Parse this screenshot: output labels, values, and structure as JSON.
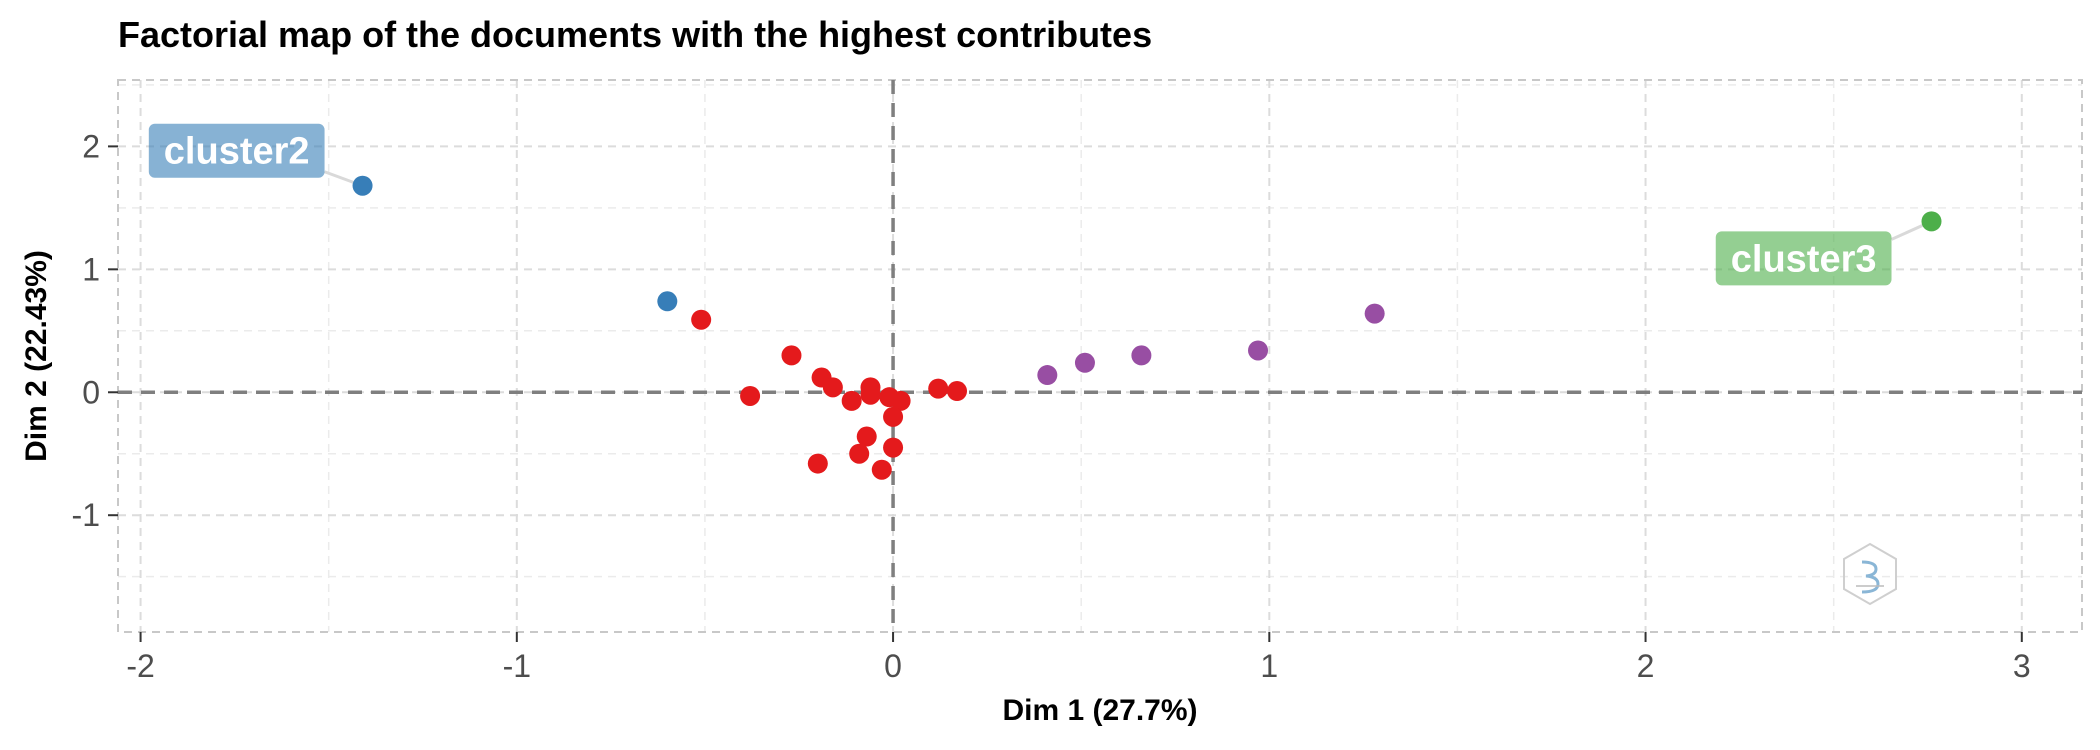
{
  "chart_data": {
    "type": "scatter",
    "title": "Factorial map of the documents with the highest contributes",
    "xlabel": "Dim 1 (27.7%)",
    "ylabel": "Dim 2 (22.43%)",
    "xlim": [
      -2.06,
      3.16
    ],
    "ylim": [
      -1.95,
      2.54
    ],
    "x_ticks": [
      -2,
      -1,
      0,
      1,
      2,
      3
    ],
    "x_tick_labels": [
      "-2",
      "-1",
      "0",
      "1",
      "2",
      "3"
    ],
    "y_ticks": [
      -1,
      0,
      1,
      2
    ],
    "y_tick_labels": [
      "-1",
      "0",
      "1",
      "2"
    ],
    "grid": true,
    "reference_lines": {
      "x": 0,
      "y": 0
    },
    "series": [
      {
        "color": "#e41a1c",
        "points": [
          {
            "x": -0.51,
            "y": 0.59
          },
          {
            "x": -0.27,
            "y": 0.3
          },
          {
            "x": -0.38,
            "y": -0.03
          },
          {
            "x": -0.19,
            "y": 0.12
          },
          {
            "x": -0.16,
            "y": 0.04
          },
          {
            "x": -0.11,
            "y": -0.07
          },
          {
            "x": -0.06,
            "y": 0.04
          },
          {
            "x": -0.06,
            "y": -0.02
          },
          {
            "x": -0.01,
            "y": -0.04
          },
          {
            "x": 0.02,
            "y": -0.07
          },
          {
            "x": 0.0,
            "y": -0.2
          },
          {
            "x": 0.12,
            "y": 0.03
          },
          {
            "x": 0.17,
            "y": 0.01
          },
          {
            "x": -0.07,
            "y": -0.36
          },
          {
            "x": -0.09,
            "y": -0.5
          },
          {
            "x": -0.2,
            "y": -0.58
          },
          {
            "x": -0.03,
            "y": -0.63
          },
          {
            "x": 0.0,
            "y": -0.45
          }
        ]
      },
      {
        "color": "#377eb8",
        "points": [
          {
            "x": -1.41,
            "y": 1.68
          },
          {
            "x": -0.6,
            "y": 0.74
          }
        ]
      },
      {
        "color": "#4daf4a",
        "points": [
          {
            "x": 2.76,
            "y": 1.39
          }
        ]
      },
      {
        "color": "#984ea3",
        "points": [
          {
            "x": 0.41,
            "y": 0.14
          },
          {
            "x": 0.51,
            "y": 0.24
          },
          {
            "x": 0.66,
            "y": 0.3
          },
          {
            "x": 0.97,
            "y": 0.34
          },
          {
            "x": 1.28,
            "y": 0.64
          }
        ]
      }
    ],
    "annotations": [
      {
        "text": "cluster2",
        "x": -1.41,
        "y": 1.68,
        "color": "#377eb8",
        "position": "upper-left of point"
      },
      {
        "text": "cluster3",
        "x": 2.76,
        "y": 1.39,
        "color": "#4daf4a",
        "position": "lower-left of point"
      }
    ],
    "watermark": "bibliometrix-logo"
  }
}
